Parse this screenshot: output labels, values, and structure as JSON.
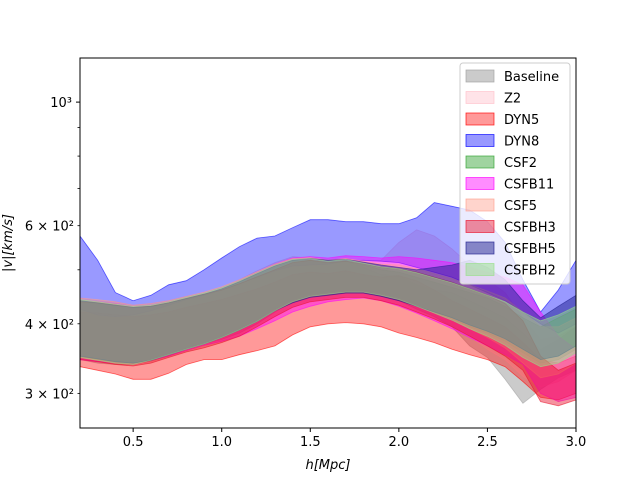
{
  "chart_data": {
    "type": "area",
    "title": "",
    "xlabel": "h[Mpc]",
    "ylabel": "|v|[km/s]",
    "xlim": [
      0.2,
      3.0
    ],
    "ylim": [
      260,
      1200
    ],
    "yscale": "log",
    "legend_position": "top-right",
    "x_ticks": [
      0.5,
      1.0,
      1.5,
      2.0,
      2.5,
      3.0
    ],
    "x_tick_labels": [
      "0.5",
      "1.0",
      "1.5",
      "2.0",
      "2.5",
      "3.0"
    ],
    "y_major_ticks": [
      1000
    ],
    "y_major_tick_labels": [
      "10³"
    ],
    "y_minor_ticks": [
      300,
      400,
      500,
      600,
      700,
      800,
      900
    ],
    "y_minor_tick_labels": [
      "3 × 10²",
      "4 × 10²",
      "",
      "6 × 10²",
      "",
      "",
      ""
    ],
    "x": [
      0.2,
      0.3,
      0.4,
      0.5,
      0.6,
      0.7,
      0.8,
      0.9,
      1.0,
      1.1,
      1.2,
      1.3,
      1.4,
      1.5,
      1.6,
      1.7,
      1.8,
      1.9,
      2.0,
      2.1,
      2.2,
      2.3,
      2.4,
      2.5,
      2.6,
      2.7,
      2.8,
      2.9,
      3.0
    ],
    "series": [
      {
        "name": "Baseline",
        "color": "#a0a0a0",
        "alpha": 0.55,
        "upper": [
          440,
          438,
          435,
          430,
          432,
          438,
          445,
          452,
          462,
          478,
          495,
          512,
          522,
          518,
          515,
          520,
          505,
          490,
          488,
          470,
          460,
          455,
          440,
          425,
          410,
          385,
          360,
          375,
          395
        ],
        "lower": [
          345,
          340,
          338,
          338,
          343,
          350,
          360,
          368,
          375,
          385,
          400,
          420,
          438,
          448,
          452,
          455,
          458,
          448,
          440,
          425,
          412,
          395,
          365,
          348,
          318,
          288,
          305,
          320,
          330
        ]
      },
      {
        "name": "Z2",
        "color": "#ffc0cb",
        "alpha": 0.45,
        "upper": [
          445,
          440,
          438,
          432,
          435,
          440,
          448,
          455,
          465,
          480,
          498,
          515,
          528,
          525,
          520,
          525,
          515,
          520,
          560,
          590,
          575,
          545,
          510,
          480,
          455,
          410,
          375,
          380,
          395
        ],
        "lower": [
          345,
          342,
          340,
          338,
          344,
          352,
          360,
          368,
          376,
          386,
          402,
          422,
          440,
          452,
          455,
          460,
          460,
          452,
          445,
          430,
          418,
          400,
          380,
          360,
          345,
          322,
          308,
          315,
          330
        ]
      },
      {
        "name": "DYN5",
        "color": "#ff0000",
        "alpha": 0.4,
        "upper": [
          420,
          418,
          415,
          412,
          415,
          420,
          428,
          435,
          442,
          452,
          462,
          475,
          490,
          495,
          492,
          498,
          490,
          485,
          488,
          478,
          460,
          440,
          425,
          410,
          395,
          370,
          345,
          340,
          350
        ],
        "lower": [
          335,
          330,
          325,
          318,
          318,
          326,
          338,
          345,
          345,
          352,
          358,
          365,
          382,
          395,
          400,
          402,
          400,
          395,
          385,
          378,
          370,
          360,
          352,
          345,
          335,
          315,
          295,
          292,
          300
        ]
      },
      {
        "name": "DYN8",
        "color": "#0000ff",
        "alpha": 0.4,
        "upper": [
          575,
          520,
          455,
          440,
          450,
          470,
          478,
          500,
          525,
          550,
          570,
          575,
          595,
          615,
          615,
          610,
          610,
          605,
          605,
          620,
          660,
          650,
          640,
          610,
          560,
          480,
          420,
          460,
          520
        ],
        "lower": [
          425,
          415,
          412,
          415,
          422,
          432,
          442,
          450,
          460,
          472,
          485,
          498,
          508,
          510,
          512,
          518,
          520,
          518,
          515,
          505,
          495,
          485,
          470,
          455,
          440,
          420,
          400,
          385,
          400
        ]
      },
      {
        "name": "CSF2",
        "color": "#2ca02c",
        "alpha": 0.45,
        "upper": [
          440,
          436,
          432,
          428,
          430,
          436,
          442,
          450,
          460,
          475,
          490,
          505,
          518,
          520,
          515,
          518,
          510,
          500,
          495,
          485,
          475,
          465,
          455,
          445,
          430,
          410,
          395,
          410,
          425
        ],
        "lower": [
          350,
          345,
          342,
          340,
          345,
          352,
          360,
          368,
          378,
          390,
          405,
          425,
          440,
          450,
          455,
          458,
          458,
          452,
          445,
          432,
          420,
          408,
          395,
          385,
          372,
          355,
          340,
          345,
          360
        ]
      },
      {
        "name": "CSFB11",
        "color": "#ff00ff",
        "alpha": 0.45,
        "upper": [
          440,
          438,
          435,
          430,
          432,
          438,
          445,
          452,
          462,
          478,
          495,
          512,
          525,
          528,
          525,
          530,
          528,
          525,
          528,
          525,
          520,
          515,
          505,
          495,
          485,
          470,
          420,
          380,
          360
        ],
        "lower": [
          345,
          342,
          340,
          338,
          344,
          350,
          358,
          366,
          372,
          380,
          392,
          405,
          420,
          430,
          438,
          442,
          445,
          440,
          430,
          418,
          405,
          392,
          378,
          365,
          352,
          338,
          300,
          290,
          295
        ]
      },
      {
        "name": "CSF5",
        "color": "#ff9f8f",
        "alpha": 0.45,
        "upper": [
          445,
          442,
          438,
          432,
          435,
          440,
          448,
          456,
          466,
          480,
          496,
          512,
          524,
          526,
          520,
          524,
          518,
          512,
          510,
          502,
          492,
          482,
          470,
          458,
          445,
          420,
          395,
          395,
          410
        ],
        "lower": [
          348,
          344,
          340,
          338,
          344,
          352,
          360,
          368,
          378,
          390,
          405,
          424,
          440,
          450,
          454,
          458,
          458,
          452,
          444,
          432,
          420,
          408,
          392,
          378,
          362,
          340,
          320,
          325,
          340
        ]
      },
      {
        "name": "CSFBH3",
        "color": "#e8102a",
        "alpha": 0.45,
        "upper": [
          438,
          436,
          432,
          428,
          430,
          436,
          444,
          452,
          460,
          472,
          486,
          500,
          515,
          520,
          515,
          518,
          512,
          505,
          502,
          495,
          485,
          475,
          462,
          450,
          435,
          405,
          350,
          330,
          340
        ],
        "lower": [
          345,
          342,
          338,
          336,
          340,
          348,
          356,
          362,
          370,
          380,
          395,
          412,
          428,
          438,
          442,
          446,
          446,
          440,
          432,
          420,
          408,
          395,
          380,
          365,
          350,
          330,
          290,
          285,
          292
        ]
      },
      {
        "name": "CSFBH5",
        "color": "#1f1f8f",
        "alpha": 0.5,
        "upper": [
          440,
          436,
          432,
          428,
          430,
          436,
          444,
          452,
          462,
          476,
          492,
          508,
          520,
          524,
          520,
          522,
          516,
          510,
          505,
          500,
          505,
          510,
          520,
          505,
          480,
          440,
          410,
          430,
          450
        ],
        "lower": [
          350,
          346,
          342,
          340,
          344,
          352,
          360,
          368,
          378,
          390,
          404,
          422,
          436,
          446,
          450,
          454,
          454,
          448,
          440,
          430,
          420,
          410,
          398,
          388,
          376,
          360,
          345,
          350,
          365
        ]
      },
      {
        "name": "CSFBH2",
        "color": "#98df8a",
        "alpha": 0.5,
        "upper": [
          442,
          438,
          434,
          430,
          432,
          438,
          446,
          454,
          464,
          478,
          494,
          510,
          522,
          524,
          518,
          522,
          514,
          506,
          502,
          494,
          484,
          474,
          462,
          450,
          438,
          420,
          405,
          415,
          430
        ],
        "lower": [
          348,
          344,
          340,
          338,
          344,
          352,
          360,
          368,
          378,
          390,
          404,
          422,
          438,
          448,
          452,
          456,
          456,
          450,
          442,
          430,
          418,
          406,
          392,
          380,
          366,
          348,
          335,
          340,
          355
        ]
      }
    ]
  }
}
